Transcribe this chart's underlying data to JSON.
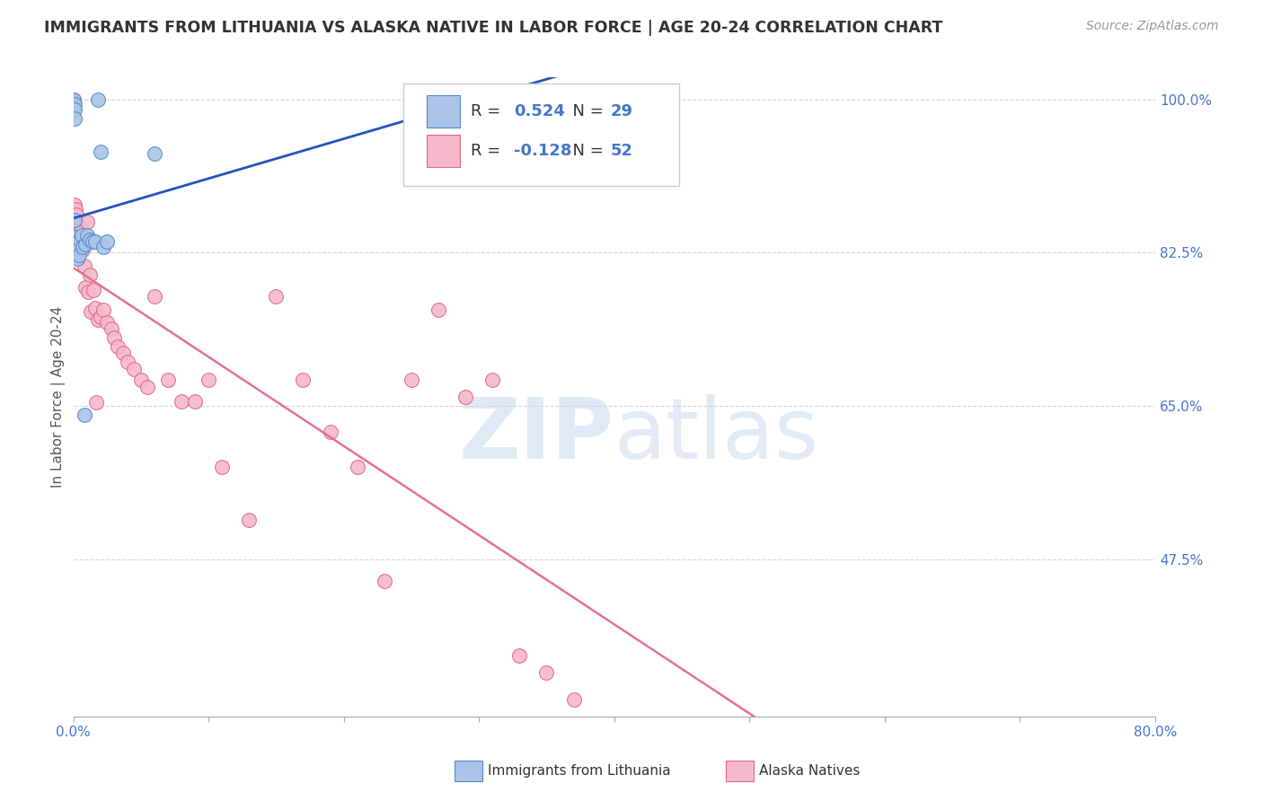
{
  "title": "IMMIGRANTS FROM LITHUANIA VS ALASKA NATIVE IN LABOR FORCE | AGE 20-24 CORRELATION CHART",
  "source": "Source: ZipAtlas.com",
  "ylabel": "In Labor Force | Age 20-24",
  "xlim": [
    0.0,
    0.8
  ],
  "ylim": [
    0.295,
    1.025
  ],
  "xticks": [
    0.0,
    0.1,
    0.2,
    0.3,
    0.4,
    0.5,
    0.6,
    0.7,
    0.8
  ],
  "yticks_right": [
    1.0,
    0.825,
    0.65,
    0.475
  ],
  "ytick_labels_right": [
    "100.0%",
    "82.5%",
    "65.0%",
    "47.5%"
  ],
  "blue_scatter_x": [
    0.0005,
    0.0005,
    0.001,
    0.001,
    0.001,
    0.001,
    0.001,
    0.0015,
    0.0015,
    0.002,
    0.002,
    0.003,
    0.003,
    0.004,
    0.004,
    0.005,
    0.006,
    0.007,
    0.008,
    0.009,
    0.01,
    0.012,
    0.014,
    0.016,
    0.018,
    0.02,
    0.022,
    0.025,
    0.06
  ],
  "blue_scatter_y": [
    1.0,
    0.99,
    0.995,
    0.988,
    0.978,
    0.862,
    0.843,
    0.836,
    0.826,
    0.835,
    0.822,
    0.832,
    0.818,
    0.833,
    0.822,
    0.84,
    0.845,
    0.832,
    0.64,
    0.835,
    0.845,
    0.84,
    0.838,
    0.838,
    1.0,
    0.94,
    0.832,
    0.838,
    0.938
  ],
  "pink_scatter_x": [
    0.0003,
    0.0005,
    0.001,
    0.0015,
    0.002,
    0.002,
    0.003,
    0.004,
    0.005,
    0.005,
    0.006,
    0.007,
    0.008,
    0.009,
    0.01,
    0.011,
    0.012,
    0.013,
    0.015,
    0.016,
    0.017,
    0.018,
    0.02,
    0.022,
    0.025,
    0.028,
    0.03,
    0.033,
    0.037,
    0.04,
    0.045,
    0.05,
    0.055,
    0.06,
    0.07,
    0.08,
    0.09,
    0.1,
    0.11,
    0.13,
    0.15,
    0.17,
    0.19,
    0.21,
    0.23,
    0.25,
    0.27,
    0.29,
    0.31,
    0.33,
    0.35,
    0.37
  ],
  "pink_scatter_y": [
    1.0,
    0.99,
    0.88,
    0.875,
    0.868,
    0.858,
    0.848,
    0.838,
    0.855,
    0.848,
    0.84,
    0.828,
    0.81,
    0.785,
    0.86,
    0.78,
    0.8,
    0.758,
    0.782,
    0.762,
    0.654,
    0.748,
    0.752,
    0.76,
    0.745,
    0.738,
    0.728,
    0.718,
    0.71,
    0.7,
    0.692,
    0.68,
    0.672,
    0.775,
    0.68,
    0.655,
    0.655,
    0.68,
    0.58,
    0.52,
    0.775,
    0.68,
    0.62,
    0.58,
    0.45,
    0.68,
    0.76,
    0.66,
    0.68,
    0.365,
    0.345,
    0.315
  ],
  "blue_color": "#aac4e8",
  "blue_edge_color": "#5588cc",
  "pink_color": "#f5b8cb",
  "pink_edge_color": "#e06888",
  "blue_line_color": "#2255bb",
  "pink_line_color": "#e87090",
  "R_blue": 0.524,
  "N_blue": 29,
  "R_pink": -0.128,
  "N_pink": 52,
  "watermark_zip": "ZIP",
  "watermark_atlas": "atlas",
  "background_color": "#ffffff",
  "grid_color": "#cccccc",
  "title_color": "#333333",
  "source_color": "#999999",
  "tick_color": "#4477cc"
}
